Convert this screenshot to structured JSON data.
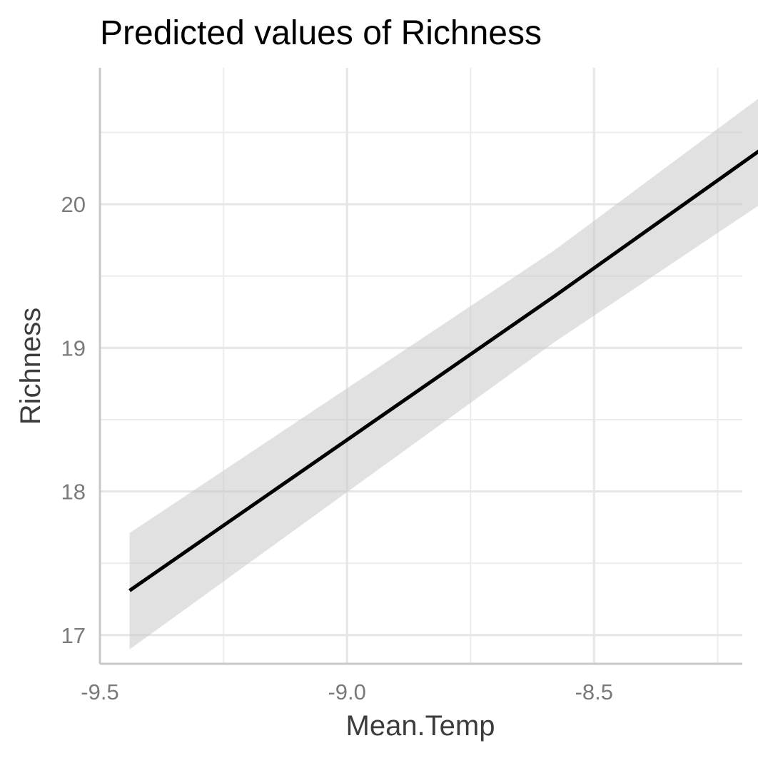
{
  "chart_data": {
    "type": "line",
    "title": "Predicted values of Richness",
    "xlabel": "Mean.Temp",
    "ylabel": "Richness",
    "xlim": [
      -9.5,
      -8.2
    ],
    "ylim": [
      16.8,
      20.95
    ],
    "x_ticks": [
      -9.5,
      -9.0,
      -8.5
    ],
    "x_tick_labels": [
      "-9.5",
      "-9.0",
      "-8.5"
    ],
    "x_minor_ticks": [
      -9.25,
      -8.75,
      -8.25
    ],
    "y_ticks": [
      17,
      18,
      19,
      20
    ],
    "y_tick_labels": [
      "17",
      "18",
      "19",
      "20"
    ],
    "y_minor_ticks": [
      17.5,
      18.5,
      19.5,
      20.5
    ],
    "grid": true,
    "legend": "none",
    "line_color": "#000000",
    "band_color": "#c8c8c8",
    "series": [
      {
        "x": [
          -9.44,
          -8.58,
          -8.15
        ],
        "y": [
          17.31,
          19.36,
          20.41
        ],
        "lower": [
          16.9,
          19.04,
          20.03
        ],
        "upper": [
          17.71,
          19.68,
          20.78
        ]
      }
    ]
  }
}
